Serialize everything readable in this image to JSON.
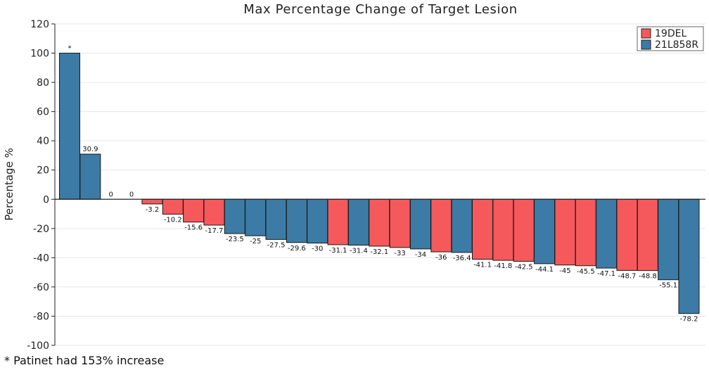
{
  "chart_data": {
    "type": "bar",
    "title": "Max Percentage Change of Target Lesion",
    "xlabel": "",
    "ylabel": "Percentage %",
    "ylim": [
      -100,
      120
    ],
    "yticks": [
      120,
      100,
      80,
      60,
      40,
      20,
      0,
      -20,
      -40,
      -60,
      -80,
      -100
    ],
    "grid": true,
    "legend_position": "top-right",
    "series": [
      {
        "name": "19DEL",
        "color": "#f5595b"
      },
      {
        "name": "21L858R",
        "color": "#3c7ba5"
      }
    ],
    "bars": [
      {
        "value": 100,
        "group": "21L858R",
        "label": "*"
      },
      {
        "value": 30.9,
        "group": "21L858R",
        "label": "30.9"
      },
      {
        "value": 0,
        "group": "21L858R",
        "label": "0"
      },
      {
        "value": 0,
        "group": "21L858R",
        "label": "0"
      },
      {
        "value": -3.2,
        "group": "19DEL",
        "label": "-3.2"
      },
      {
        "value": -10.2,
        "group": "19DEL",
        "label": "-10.2"
      },
      {
        "value": -15.6,
        "group": "19DEL",
        "label": "-15.6"
      },
      {
        "value": -17.7,
        "group": "19DEL",
        "label": "-17.7"
      },
      {
        "value": -23.5,
        "group": "21L858R",
        "label": "-23.5"
      },
      {
        "value": -25,
        "group": "21L858R",
        "label": "-25"
      },
      {
        "value": -27.5,
        "group": "21L858R",
        "label": "-27.5"
      },
      {
        "value": -29.6,
        "group": "21L858R",
        "label": "-29.6"
      },
      {
        "value": -30,
        "group": "21L858R",
        "label": "-30"
      },
      {
        "value": -31.1,
        "group": "19DEL",
        "label": "-31.1"
      },
      {
        "value": -31.4,
        "group": "21L858R",
        "label": "-31.4"
      },
      {
        "value": -32.1,
        "group": "19DEL",
        "label": "-32.1"
      },
      {
        "value": -33,
        "group": "19DEL",
        "label": "-33"
      },
      {
        "value": -34,
        "group": "21L858R",
        "label": "-34"
      },
      {
        "value": -36,
        "group": "19DEL",
        "label": "-36"
      },
      {
        "value": -36.4,
        "group": "21L858R",
        "label": "-36.4"
      },
      {
        "value": -41.1,
        "group": "19DEL",
        "label": "-41.1"
      },
      {
        "value": -41.8,
        "group": "19DEL",
        "label": "-41.8"
      },
      {
        "value": -42.5,
        "group": "19DEL",
        "label": "-42.5"
      },
      {
        "value": -44.1,
        "group": "21L858R",
        "label": "-44.1"
      },
      {
        "value": -45,
        "group": "19DEL",
        "label": "-45"
      },
      {
        "value": -45.5,
        "group": "19DEL",
        "label": "-45.5"
      },
      {
        "value": -47.1,
        "group": "21L858R",
        "label": "-47.1"
      },
      {
        "value": -48.7,
        "group": "19DEL",
        "label": "-48.7"
      },
      {
        "value": -48.8,
        "group": "19DEL",
        "label": "-48.8"
      },
      {
        "value": -55.1,
        "group": "21L858R",
        "label": "-55.1"
      },
      {
        "value": -78.2,
        "group": "21L858R",
        "label": "-78.2"
      }
    ],
    "footnote": "* Patinet had 153% increase"
  }
}
